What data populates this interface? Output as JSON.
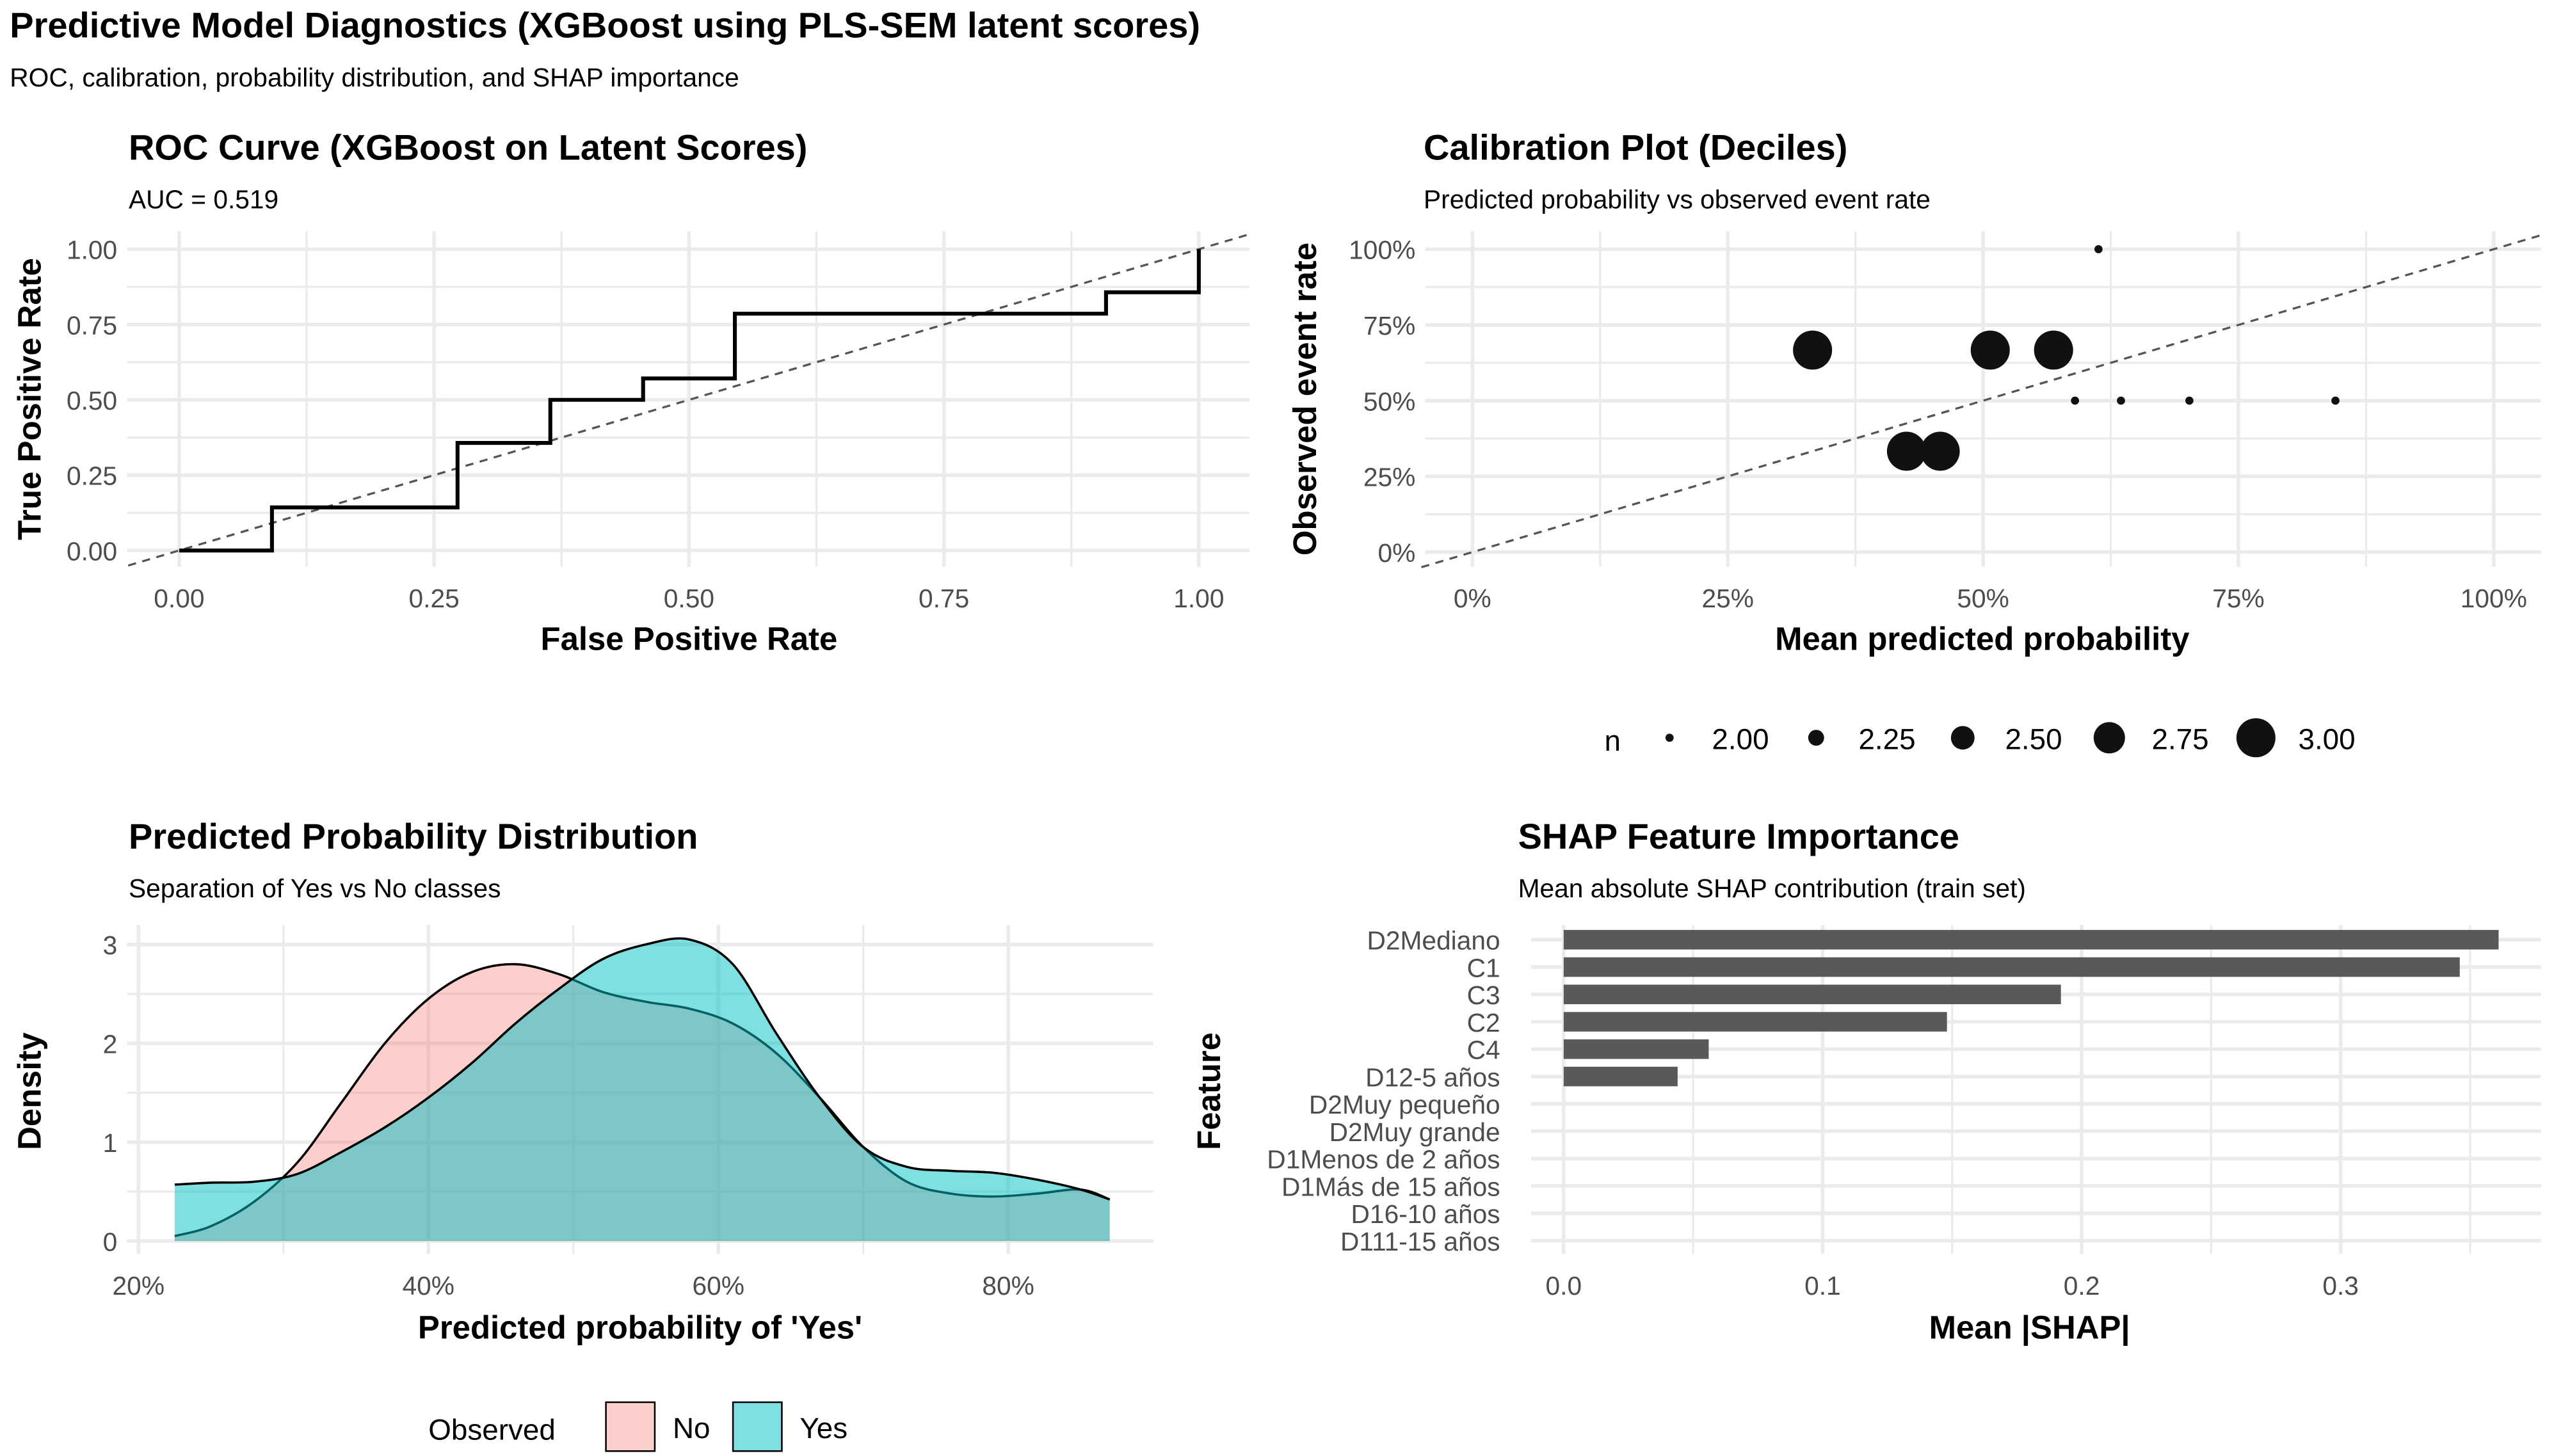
{
  "header": {
    "title": "Predictive Model Diagnostics (XGBoost using PLS-SEM latent scores)",
    "subtitle": "ROC, calibration, probability distribution, and SHAP importance"
  },
  "colors": {
    "no": "#F8766D",
    "yes": "#00BFC4",
    "bar": "#595959",
    "line": "#000000",
    "ref": "#555555"
  },
  "chart_data": [
    {
      "type": "line",
      "title": "ROC Curve (XGBoost on Latent Scores)",
      "subtitle": "AUC = 0.519",
      "xlabel": "False Positive Rate",
      "ylabel": "True Positive Rate",
      "xlim": [
        0,
        1
      ],
      "ylim": [
        0,
        1
      ],
      "xticks": [
        "0.00",
        "0.25",
        "0.50",
        "0.75",
        "1.00"
      ],
      "yticks": [
        "0.00",
        "0.25",
        "0.50",
        "0.75",
        "1.00"
      ],
      "x": [
        0,
        0.091,
        0.091,
        0.273,
        0.273,
        0.364,
        0.364,
        0.455,
        0.455,
        0.545,
        0.545,
        0.909,
        0.909,
        1,
        1
      ],
      "y": [
        0,
        0,
        0.143,
        0.143,
        0.357,
        0.357,
        0.5,
        0.5,
        0.571,
        0.571,
        0.786,
        0.786,
        0.857,
        0.857,
        1
      ],
      "reference_line": "diagonal dashed"
    },
    {
      "type": "scatter",
      "title": "Calibration Plot (Deciles)",
      "subtitle": "Predicted probability vs observed event rate",
      "xlabel": "Mean predicted probability",
      "ylabel": "Observed event rate",
      "xlim": [
        0,
        1
      ],
      "ylim": [
        0,
        1
      ],
      "xticks": [
        "0%",
        "25%",
        "50%",
        "75%",
        "100%"
      ],
      "yticks": [
        "0%",
        "25%",
        "50%",
        "75%",
        "100%"
      ],
      "points": [
        {
          "x": 0.333,
          "y": 0.667,
          "n": 3
        },
        {
          "x": 0.507,
          "y": 0.667,
          "n": 3
        },
        {
          "x": 0.569,
          "y": 0.667,
          "n": 3
        },
        {
          "x": 0.425,
          "y": 0.333,
          "n": 3
        },
        {
          "x": 0.458,
          "y": 0.333,
          "n": 3
        },
        {
          "x": 0.613,
          "y": 1.0,
          "n": 2
        },
        {
          "x": 0.59,
          "y": 0.5,
          "n": 2
        },
        {
          "x": 0.635,
          "y": 0.5,
          "n": 2
        },
        {
          "x": 0.702,
          "y": 0.5,
          "n": 2
        },
        {
          "x": 0.845,
          "y": 0.5,
          "n": 2
        }
      ],
      "legend": {
        "title": "n",
        "values": [
          "2.00",
          "2.25",
          "2.50",
          "2.75",
          "3.00"
        ],
        "placement": "bottom"
      }
    },
    {
      "type": "area",
      "title": "Predicted Probability Distribution",
      "subtitle": "Separation of Yes vs No classes",
      "xlabel": "Predicted probability of 'Yes'",
      "ylabel": "Density",
      "xlim": [
        0.2,
        0.9
      ],
      "ylim": [
        0,
        3.1
      ],
      "xticks": [
        "20%",
        "40%",
        "60%",
        "80%"
      ],
      "yticks": [
        "0",
        "1",
        "2",
        "3"
      ],
      "series": [
        {
          "name": "No",
          "x": [
            0.225,
            0.25,
            0.28,
            0.31,
            0.34,
            0.37,
            0.4,
            0.43,
            0.46,
            0.49,
            0.52,
            0.55,
            0.58,
            0.61,
            0.64,
            0.67,
            0.7,
            0.73,
            0.76,
            0.79,
            0.82,
            0.85,
            0.87
          ],
          "values": [
            0.05,
            0.15,
            0.4,
            0.8,
            1.4,
            2.0,
            2.45,
            2.72,
            2.8,
            2.7,
            2.52,
            2.42,
            2.35,
            2.2,
            1.9,
            1.45,
            0.95,
            0.6,
            0.48,
            0.45,
            0.48,
            0.52,
            0.42
          ]
        },
        {
          "name": "Yes",
          "x": [
            0.225,
            0.25,
            0.28,
            0.31,
            0.34,
            0.37,
            0.4,
            0.43,
            0.46,
            0.49,
            0.52,
            0.55,
            0.58,
            0.61,
            0.64,
            0.67,
            0.7,
            0.73,
            0.76,
            0.79,
            0.82,
            0.85,
            0.87
          ],
          "values": [
            0.57,
            0.59,
            0.6,
            0.68,
            0.9,
            1.15,
            1.45,
            1.8,
            2.2,
            2.55,
            2.85,
            3.0,
            3.05,
            2.8,
            2.1,
            1.45,
            0.95,
            0.75,
            0.71,
            0.69,
            0.62,
            0.52,
            0.42
          ]
        }
      ],
      "legend": {
        "title": "Observed",
        "entries": [
          "No",
          "Yes"
        ],
        "placement": "bottom"
      }
    },
    {
      "type": "bar",
      "orientation": "horizontal",
      "title": "SHAP Feature Importance",
      "subtitle": "Mean absolute SHAP contribution (train set)",
      "xlabel": "Mean |SHAP|",
      "ylabel": "Feature",
      "xlim": [
        0,
        0.38
      ],
      "xticks": [
        "0.0",
        "0.1",
        "0.2",
        "0.3"
      ],
      "categories": [
        "D2Mediano",
        "C1",
        "C3",
        "C2",
        "C4",
        "D12-5 años",
        "D2Muy pequeño",
        "D2Muy grande",
        "D1Menos de 2 años",
        "D1Más de 15 años",
        "D16-10 años",
        "D111-15 años"
      ],
      "values": [
        0.361,
        0.346,
        0.192,
        0.148,
        0.056,
        0.044,
        0,
        0,
        0,
        0,
        0,
        0
      ]
    }
  ]
}
